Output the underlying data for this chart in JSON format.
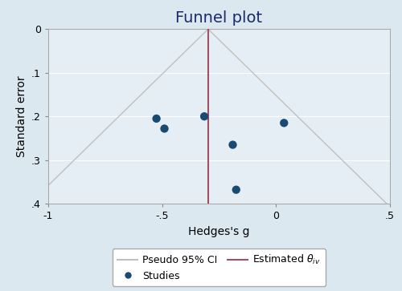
{
  "title": "Funnel plot",
  "xlabel": "Hedges's g",
  "ylabel": "Standard error",
  "xlim": [
    -1,
    0.5
  ],
  "ylim": [
    0,
    0.4
  ],
  "xticks": [
    -1,
    -0.5,
    0,
    0.5
  ],
  "xtick_labels": [
    "-1",
    "-.5",
    "0",
    ".5"
  ],
  "yticks": [
    0,
    0.1,
    0.2,
    0.3,
    0.4
  ],
  "ytick_labels": [
    "0",
    ".1",
    ".2",
    ".3",
    ".4"
  ],
  "theta_iv": -0.298,
  "studies_x": [
    -0.525,
    -0.49,
    -0.315,
    -0.19,
    -0.175,
    0.035
  ],
  "studies_y": [
    0.205,
    0.228,
    0.2,
    0.265,
    0.368,
    0.215
  ],
  "dot_color": "#1a4a72",
  "dot_size": 55,
  "funnel_color": "#c0c0c0",
  "theta_line_color": "#a05060",
  "bg_color": "#dce8f0",
  "plot_bg_color": "#e4eef4",
  "title_fontsize": 14,
  "title_color": "#1a2a6a",
  "axis_label_fontsize": 10,
  "tick_fontsize": 9,
  "legend_fontsize": 9
}
